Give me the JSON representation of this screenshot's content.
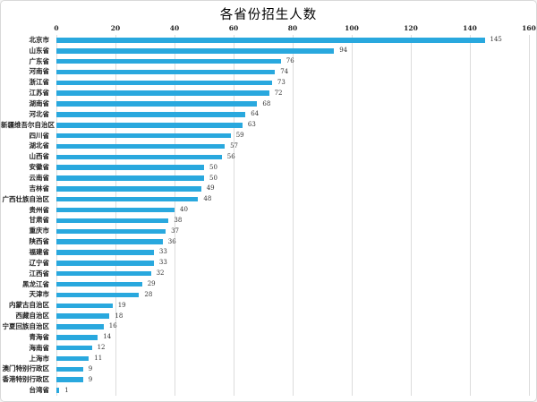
{
  "title": "各省份招生人数",
  "chart_data": {
    "type": "bar",
    "orientation": "horizontal",
    "title": "各省份招生人数",
    "xlabel": "",
    "ylabel": "",
    "xlim": [
      0,
      160
    ],
    "x_ticks": [
      0,
      20,
      40,
      60,
      80,
      100,
      120,
      140,
      160
    ],
    "grid": true,
    "value_labels_shown": true,
    "bar_color": "#29a8de",
    "grid_color": "#dcdcdc",
    "categories": [
      "北京市",
      "山东省",
      "广东省",
      "河南省",
      "浙江省",
      "江苏省",
      "湖南省",
      "河北省",
      "新疆维吾尔自治区",
      "四川省",
      "湖北省",
      "山西省",
      "安徽省",
      "云南省",
      "吉林省",
      "广西壮族自治区",
      "贵州省",
      "甘肃省",
      "重庆市",
      "陕西省",
      "福建省",
      "辽宁省",
      "江西省",
      "黑龙江省",
      "天津市",
      "内蒙古自治区",
      "西藏自治区",
      "宁夏回族自治区",
      "青海省",
      "海南省",
      "上海市",
      "澳门特别行政区",
      "香港特别行政区",
      "台湾省"
    ],
    "values": [
      145,
      94,
      76,
      74,
      73,
      72,
      68,
      64,
      63,
      59,
      57,
      56,
      50,
      50,
      49,
      48,
      40,
      38,
      37,
      36,
      33,
      33,
      32,
      29,
      28,
      19,
      18,
      16,
      14,
      12,
      11,
      9,
      9,
      1
    ]
  }
}
